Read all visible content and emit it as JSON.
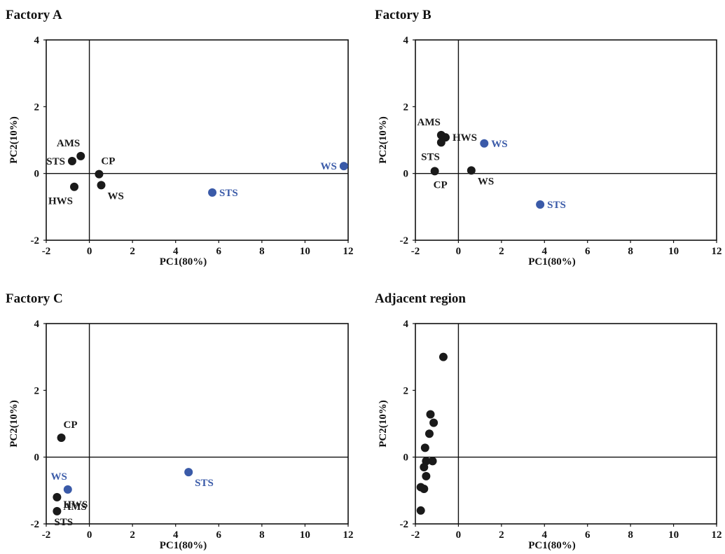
{
  "chart_data": [
    {
      "type": "scatter",
      "title": "Factory A",
      "xlabel": "PC1(80%)",
      "ylabel": "PC2(10%)",
      "xlim": [
        -2,
        12
      ],
      "ylim": [
        -2,
        4
      ],
      "xticks": [
        "-2",
        "0",
        "2",
        "4",
        "6",
        "8",
        "10",
        "12"
      ],
      "yticks": [
        "-2",
        "0",
        "2",
        "4"
      ],
      "grid": false,
      "points": [
        {
          "x": -0.4,
          "y": 0.52,
          "color": "#1a1a1a",
          "label": "AMS",
          "label_pos": "above-left"
        },
        {
          "x": -0.8,
          "y": 0.37,
          "color": "#1a1a1a",
          "label": "STS",
          "label_pos": "left"
        },
        {
          "x": 0.45,
          "y": -0.02,
          "color": "#1a1a1a",
          "label": "CP",
          "label_pos": "above-right"
        },
        {
          "x": 0.55,
          "y": -0.35,
          "color": "#1a1a1a",
          "label": "WS",
          "label_pos": "below-right"
        },
        {
          "x": -0.7,
          "y": -0.4,
          "color": "#1a1a1a",
          "label": "HWS",
          "label_pos": "below-left"
        },
        {
          "x": 11.8,
          "y": 0.22,
          "color": "#3a5aa8",
          "label": "WS",
          "label_pos": "left"
        },
        {
          "x": 5.7,
          "y": -0.57,
          "color": "#3a5aa8",
          "label": "STS",
          "label_pos": "right"
        }
      ]
    },
    {
      "type": "scatter",
      "title": "Factory B",
      "xlabel": "PC1(80%)",
      "ylabel": "PC2(10%)",
      "xlim": [
        -2,
        12
      ],
      "ylim": [
        -2,
        4
      ],
      "xticks": [
        "-2",
        "0",
        "2",
        "4",
        "6",
        "8",
        "10",
        "12"
      ],
      "yticks": [
        "-2",
        "0",
        "2",
        "4"
      ],
      "grid": false,
      "points": [
        {
          "x": -0.8,
          "y": 1.15,
          "color": "#1a1a1a",
          "label": "AMS",
          "label_pos": "above-left"
        },
        {
          "x": -0.6,
          "y": 1.08,
          "color": "#1a1a1a",
          "label": "HWS",
          "label_pos": "right"
        },
        {
          "x": -0.8,
          "y": 0.93,
          "color": "#1a1a1a",
          "label": "STS",
          "label_pos": "below-left"
        },
        {
          "x": -1.1,
          "y": 0.07,
          "color": "#1a1a1a",
          "label": "CP",
          "label_pos": "below"
        },
        {
          "x": 0.6,
          "y": 0.09,
          "color": "#1a1a1a",
          "label": "WS",
          "label_pos": "below-right"
        },
        {
          "x": 1.2,
          "y": 0.9,
          "color": "#3a5aa8",
          "label": "WS",
          "label_pos": "right"
        },
        {
          "x": 3.8,
          "y": -0.93,
          "color": "#3a5aa8",
          "label": "STS",
          "label_pos": "right"
        }
      ]
    },
    {
      "type": "scatter",
      "title": "Factory C",
      "xlabel": "PC1(80%)",
      "ylabel": "PC2(10%)",
      "xlim": [
        -2,
        12
      ],
      "ylim": [
        -2,
        4
      ],
      "xticks": [
        "-2",
        "0",
        "2",
        "4",
        "6",
        "8",
        "10",
        "12"
      ],
      "yticks": [
        "-2",
        "0",
        "2",
        "4"
      ],
      "grid": false,
      "points": [
        {
          "x": -1.3,
          "y": 0.58,
          "color": "#1a1a1a",
          "label": "CP",
          "label_pos": "above-right"
        },
        {
          "x": -1.0,
          "y": -0.97,
          "color": "#3a5aa8",
          "label": "WS",
          "label_pos": "above-left"
        },
        {
          "x": -1.5,
          "y": -1.2,
          "color": "#1a1a1a",
          "label": "HWS",
          "label_pos": "right-below"
        },
        {
          "x": -1.5,
          "y": -1.62,
          "color": "#1a1a1a",
          "label": "AMS",
          "label_pos": "right-above"
        },
        {
          "x": -1.5,
          "y": -1.62,
          "color": "#1a1a1a",
          "label": "STS",
          "label_pos": "below"
        },
        {
          "x": 4.6,
          "y": -0.45,
          "color": "#3a5aa8",
          "label": "STS",
          "label_pos": "below-right"
        }
      ]
    },
    {
      "type": "scatter",
      "title": "Adjacent region",
      "xlabel": "PC1(80%)",
      "ylabel": "PC2(10%)",
      "xlim": [
        -2,
        12
      ],
      "ylim": [
        -2,
        4
      ],
      "xticks": [
        "-2",
        "0",
        "2",
        "4",
        "6",
        "8",
        "10",
        "12"
      ],
      "yticks": [
        "-2",
        "0",
        "2",
        "4"
      ],
      "grid": false,
      "points": [
        {
          "x": -0.7,
          "y": 3.0,
          "color": "#1a1a1a",
          "label": ""
        },
        {
          "x": -1.3,
          "y": 1.28,
          "color": "#1a1a1a",
          "label": ""
        },
        {
          "x": -1.15,
          "y": 1.03,
          "color": "#1a1a1a",
          "label": ""
        },
        {
          "x": -1.35,
          "y": 0.7,
          "color": "#1a1a1a",
          "label": ""
        },
        {
          "x": -1.55,
          "y": 0.28,
          "color": "#1a1a1a",
          "label": ""
        },
        {
          "x": -1.5,
          "y": -0.12,
          "color": "#1a1a1a",
          "label": ""
        },
        {
          "x": -1.2,
          "y": -0.12,
          "color": "#1a1a1a",
          "label": ""
        },
        {
          "x": -1.6,
          "y": -0.3,
          "color": "#1a1a1a",
          "label": ""
        },
        {
          "x": -1.5,
          "y": -0.57,
          "color": "#1a1a1a",
          "label": ""
        },
        {
          "x": -1.75,
          "y": -0.9,
          "color": "#1a1a1a",
          "label": ""
        },
        {
          "x": -1.6,
          "y": -0.95,
          "color": "#1a1a1a",
          "label": ""
        },
        {
          "x": -1.75,
          "y": -1.6,
          "color": "#1a1a1a",
          "label": ""
        }
      ]
    }
  ]
}
